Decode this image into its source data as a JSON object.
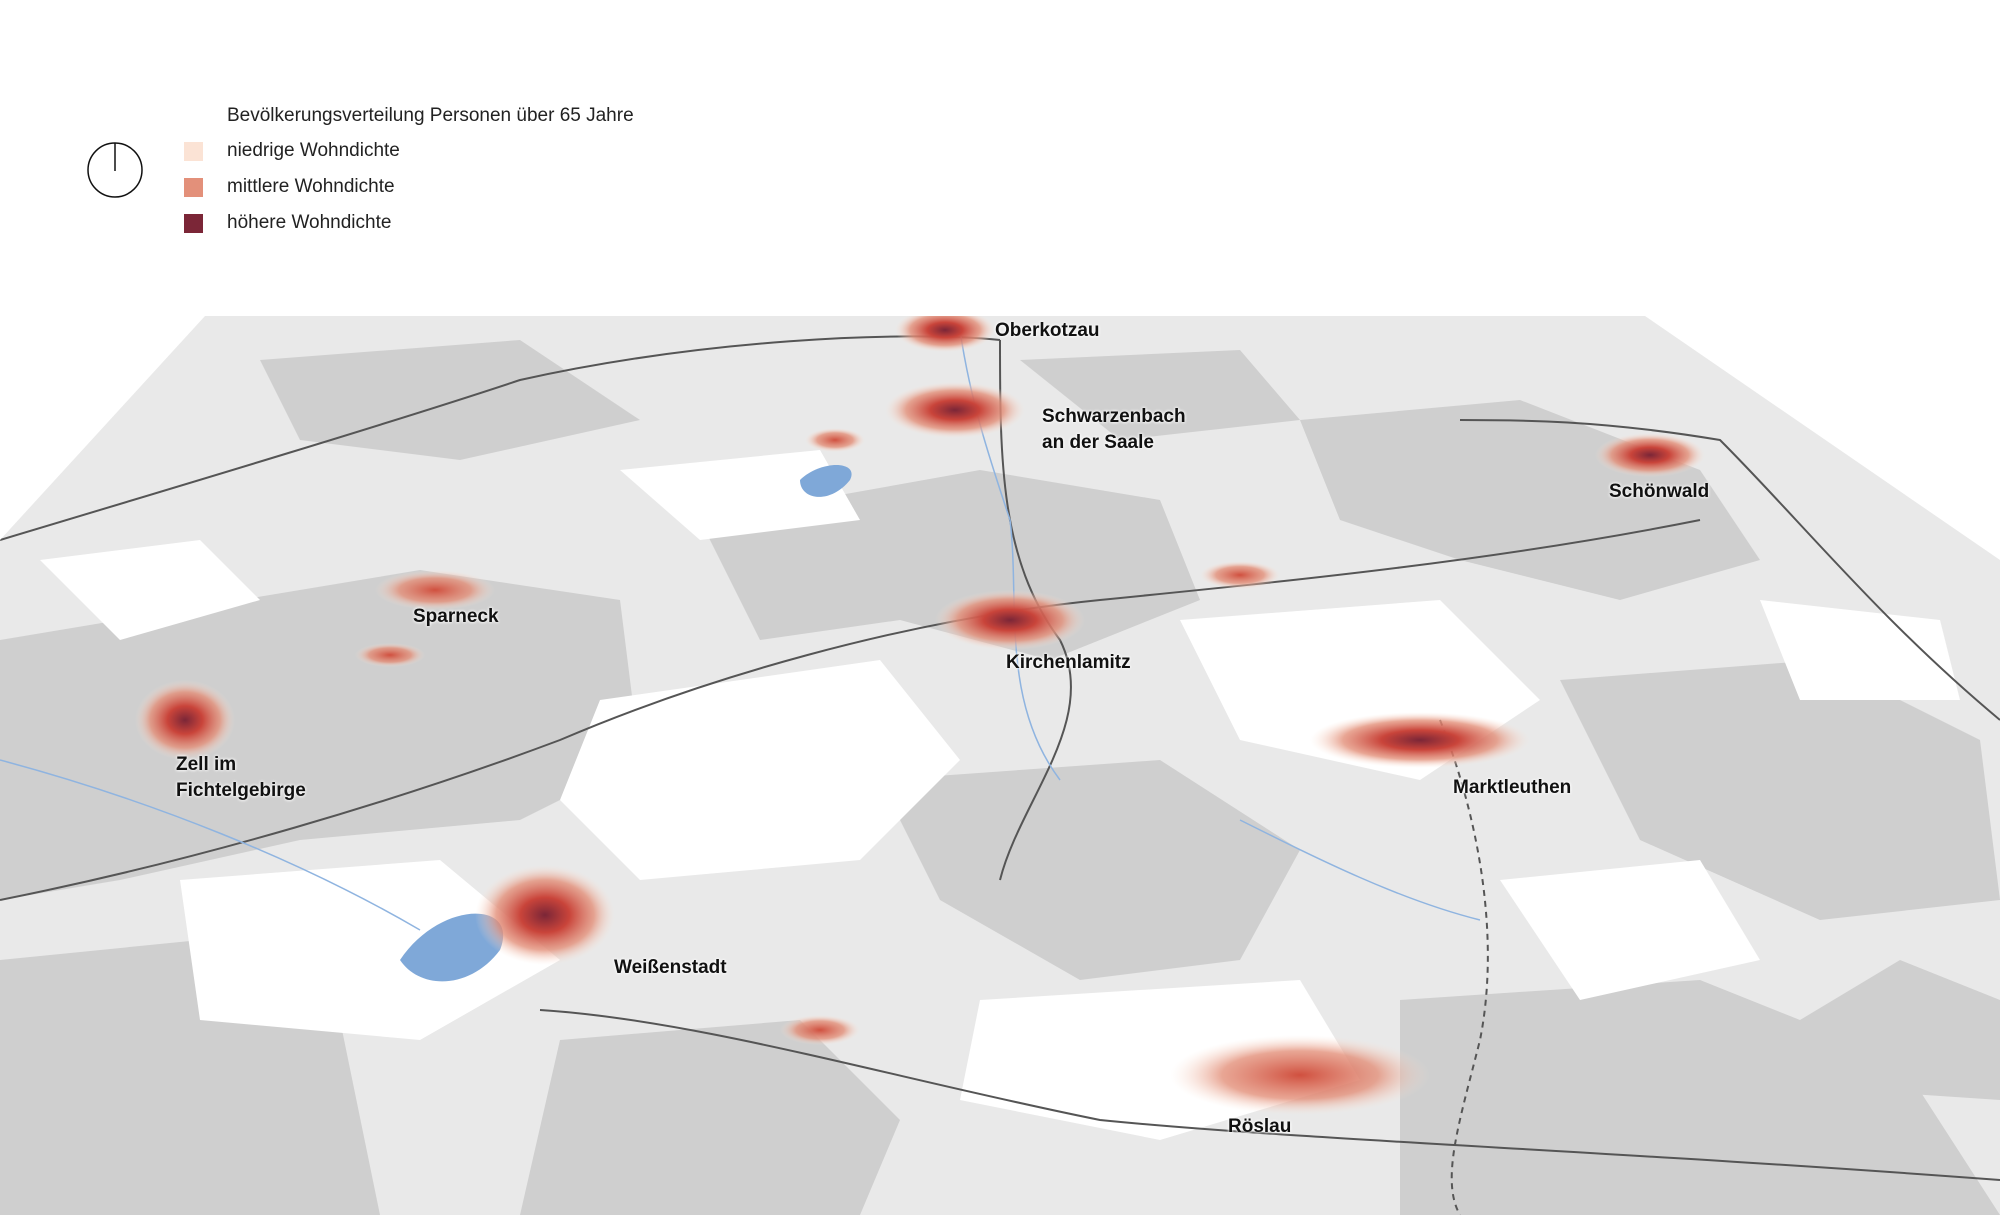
{
  "legend": {
    "title": "Bevölkerungsverteilung Personen über 65 Jahre",
    "items": [
      {
        "label": "niedrige Wohndichte",
        "color": "#fbe3d5"
      },
      {
        "label": "mittlere Wohndichte",
        "color": "#e3907a"
      },
      {
        "label": "höhere Wohndichte",
        "color": "#7b2637"
      }
    ],
    "north_arrow_icon": "north-arrow-icon"
  },
  "colors": {
    "forest": "#cfcfcf",
    "open_land": "#ffffff",
    "background": "#e9e9e9",
    "water": "#7fa8d8",
    "boundary": "#555555"
  },
  "places": [
    {
      "name": "Oberkotzau",
      "density": "high"
    },
    {
      "name": "Schwarzenbach\nan der Saale",
      "density": "high"
    },
    {
      "name": "Schönwald",
      "density": "high"
    },
    {
      "name": "Sparneck",
      "density": "medium"
    },
    {
      "name": "Kirchenlamitz",
      "density": "high"
    },
    {
      "name": "Zell im\nFichtelgebirge",
      "density": "high"
    },
    {
      "name": "Marktleuthen",
      "density": "high"
    },
    {
      "name": "Weißenstadt",
      "density": "high"
    },
    {
      "name": "Röslau",
      "density": "medium"
    }
  ]
}
